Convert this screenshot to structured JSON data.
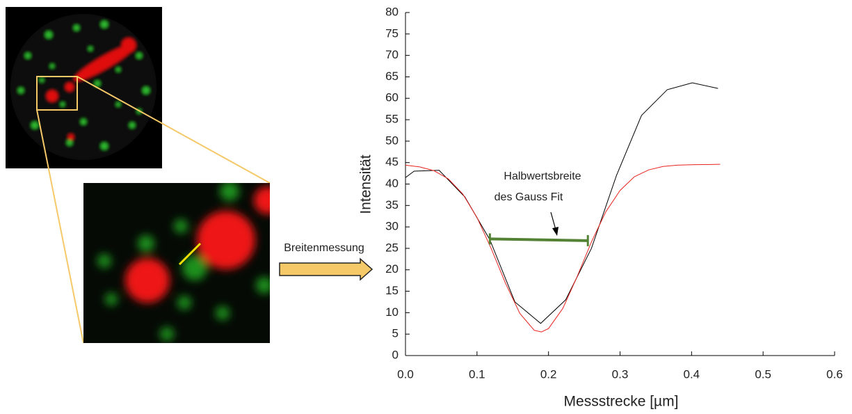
{
  "figure": {
    "arrow_label": "Breitenmessung"
  },
  "chart_data": {
    "type": "line",
    "xlabel": "Messstrecke [µm]",
    "ylabel": "Intensität",
    "annotation": [
      "Halbwertsbreite",
      "des Gauss Fit"
    ],
    "xlim": [
      0,
      0.6
    ],
    "xticks": [
      {
        "value": 0,
        "label": "0.0"
      },
      0.1,
      0.2,
      0.3,
      0.4,
      0.5,
      0.6
    ],
    "ylim": [
      0,
      80
    ],
    "yticks": [
      0,
      5,
      10,
      15,
      20,
      25,
      30,
      35,
      40,
      45,
      50,
      55,
      60,
      65,
      70,
      75,
      80
    ],
    "series": [
      {
        "color": "#000000",
        "x": [
          0,
          0.012,
          0.047,
          0.083,
          0.118,
          0.153,
          0.189,
          0.224,
          0.26,
          0.295,
          0.33,
          0.366,
          0.401,
          0.437
        ],
        "values": [
          41.5,
          43,
          43.2,
          37,
          27,
          12.5,
          7.5,
          13,
          25,
          42,
          56,
          62,
          63.6,
          62.3
        ]
      },
      {
        "color": "#e8231e",
        "x": [
          0,
          0.02,
          0.04,
          0.06,
          0.08,
          0.1,
          0.12,
          0.14,
          0.16,
          0.18,
          0.19,
          0.2,
          0.22,
          0.24,
          0.26,
          0.28,
          0.3,
          0.32,
          0.34,
          0.36,
          0.38,
          0.4,
          0.44
        ],
        "values": [
          44.4,
          44,
          43.1,
          41.2,
          37.7,
          32.2,
          24.9,
          16.8,
          9.8,
          5.9,
          5.5,
          6.3,
          11,
          18.4,
          26.5,
          33.5,
          38.5,
          41.7,
          43.3,
          44.1,
          44.4,
          44.5,
          44.6
        ]
      }
    ],
    "fwhm": {
      "color": "#548235",
      "x": [
        0.118,
        0.255
      ],
      "values": [
        27.2,
        26.8
      ]
    }
  }
}
